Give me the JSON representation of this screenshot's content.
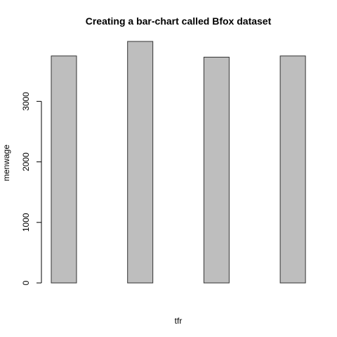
{
  "chart_data": {
    "type": "bar",
    "title": "Creating a bar-chart called Bfox dataset",
    "xlabel": "tfr",
    "ylabel": "menwage",
    "categories": [
      "",
      "",
      "",
      ""
    ],
    "values": [
      3750,
      3990,
      3730,
      3750
    ],
    "ylim": [
      0,
      3990
    ],
    "yticks": [
      0,
      1000,
      2000,
      3000
    ],
    "ytick_labels": [
      "0",
      "1000",
      "2000",
      "3000"
    ],
    "grid": false,
    "legend": "none",
    "colors": {
      "bar_fill": "#bebebe",
      "bar_stroke": "#333333",
      "axis": "#000000"
    }
  }
}
